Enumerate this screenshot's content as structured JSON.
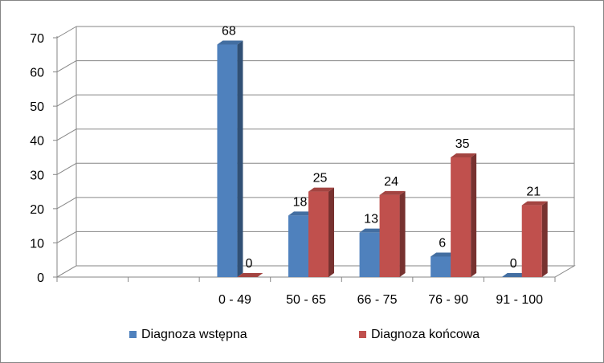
{
  "chart_data": {
    "type": "bar",
    "variant": "3d-clustered-column",
    "title": "",
    "xlabel": "",
    "ylabel": "",
    "categories": [
      "",
      "",
      "0 - 49",
      "50 - 65",
      "66 - 75",
      "76 - 90",
      "91 - 100"
    ],
    "series": [
      {
        "name": "Diagnoza wstępna",
        "color": "#4F81BD",
        "values": [
          null,
          null,
          68,
          18,
          13,
          6,
          0
        ]
      },
      {
        "name": "Diagnoza końcowa",
        "color": "#C0504D",
        "values": [
          null,
          null,
          0,
          25,
          24,
          35,
          21
        ]
      }
    ],
    "ylim": [
      0,
      70
    ],
    "yticks": [
      "0",
      "10",
      "20",
      "30",
      "40",
      "50",
      "60",
      "70"
    ],
    "grid": true,
    "legend_position": "bottom",
    "data_labels": true
  }
}
